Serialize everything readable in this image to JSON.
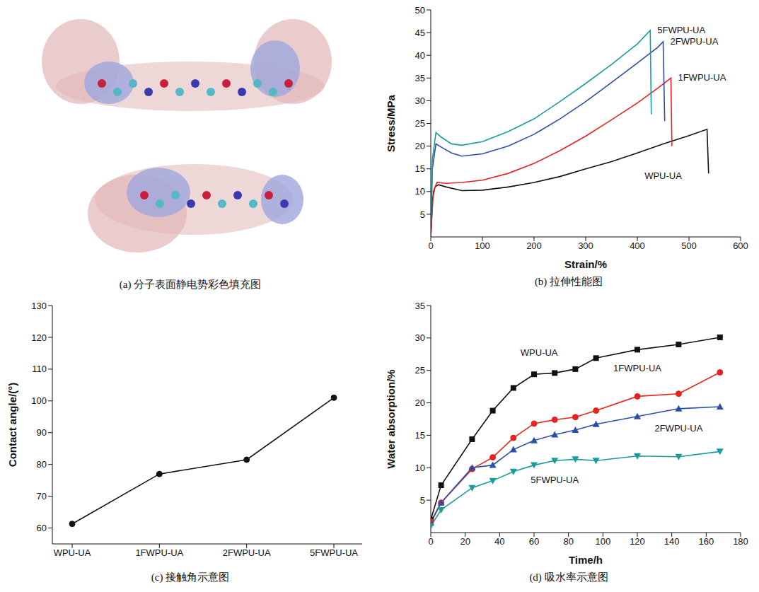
{
  "chart_data": [
    {
      "type": "image",
      "caption": "(a) 分子表面静电势彩色填充图"
    },
    {
      "type": "line",
      "caption": "(b) 拉伸性能图",
      "x_label": "Strain/%",
      "y_label": "Stress/MPa",
      "xlim": [
        0,
        600
      ],
      "xticks": [
        0,
        100,
        200,
        300,
        400,
        500,
        600
      ],
      "ylim": [
        0,
        50
      ],
      "yticks": [
        5,
        10,
        15,
        20,
        25,
        30,
        35,
        40,
        45,
        50
      ],
      "series": [
        {
          "name": "WPU-UA",
          "color": "#111111",
          "marker": "none",
          "line_style": "solid",
          "x": [
            0,
            3,
            8,
            15,
            30,
            60,
            100,
            150,
            200,
            250,
            300,
            350,
            400,
            450,
            500,
            535,
            538
          ],
          "values": [
            0,
            8,
            11,
            11.5,
            11,
            10.2,
            10.3,
            11,
            12,
            13.3,
            15,
            16.6,
            18.5,
            20.5,
            22.3,
            23.7,
            14
          ]
        },
        {
          "name": "1FWPU-UA",
          "color": "#e8231f",
          "marker": "none",
          "line_style": "solid",
          "x": [
            0,
            5,
            12,
            30,
            60,
            100,
            150,
            200,
            250,
            300,
            350,
            400,
            440,
            465,
            467
          ],
          "values": [
            0,
            10,
            12,
            11.8,
            12,
            12.5,
            14,
            16.2,
            19,
            22.2,
            25.8,
            29.5,
            32.8,
            35,
            20
          ]
        },
        {
          "name": "2FWPU-UA",
          "color": "#2b4fa6",
          "marker": "none",
          "line_style": "solid",
          "x": [
            0,
            3,
            10,
            20,
            40,
            60,
            100,
            150,
            200,
            250,
            300,
            350,
            400,
            440,
            450,
            453
          ],
          "values": [
            0,
            15,
            20.5,
            19.8,
            18.5,
            17.8,
            18.3,
            20,
            22.6,
            26,
            29.8,
            34,
            38.3,
            41.8,
            43,
            25.5
          ]
        },
        {
          "name": "5FWPU-UA",
          "color": "#1a9c9c",
          "marker": "none",
          "line_style": "solid",
          "x": [
            0,
            3,
            10,
            20,
            40,
            60,
            100,
            150,
            200,
            250,
            300,
            350,
            400,
            425,
            427
          ],
          "values": [
            0,
            17,
            23,
            22,
            20.5,
            20.2,
            21,
            23.2,
            26,
            29.8,
            33.8,
            38,
            42.5,
            45.5,
            27
          ]
        }
      ]
    },
    {
      "type": "line",
      "caption": "(c) 接触角示意图",
      "y_label": "Contact angle/(°)",
      "categories": [
        "WPU-UA",
        "1FWPU-UA",
        "2FWPU-UA",
        "5FWPU-UA"
      ],
      "ylim": [
        55,
        130
      ],
      "yticks": [
        60,
        70,
        80,
        90,
        100,
        110,
        120,
        130
      ],
      "series": [
        {
          "color": "#111111",
          "marker": "circle",
          "line_style": "solid",
          "values": [
            61.3,
            77,
            81.5,
            101
          ]
        }
      ]
    },
    {
      "type": "line",
      "caption": "(d) 吸水率示意图",
      "x_label": "Time/h",
      "y_label": "Water absorption/%",
      "x": [
        0,
        6,
        24,
        36,
        48,
        60,
        72,
        84,
        96,
        120,
        144,
        168
      ],
      "xlim": [
        0,
        180
      ],
      "xticks": [
        0,
        20,
        40,
        60,
        80,
        100,
        120,
        140,
        160,
        180
      ],
      "ylim": [
        0,
        35
      ],
      "yticks": [
        5,
        10,
        15,
        20,
        25,
        30,
        35
      ],
      "series": [
        {
          "name": "WPU-UA",
          "color": "#111111",
          "marker": "square",
          "line_style": "solid",
          "values": [
            2,
            7.3,
            14.4,
            18.8,
            22.3,
            24.4,
            24.6,
            25.2,
            26.9,
            28.2,
            29,
            30.1
          ]
        },
        {
          "name": "1FWPU-UA",
          "color": "#e8231f",
          "marker": "circle",
          "line_style": "solid",
          "values": [
            1.7,
            4.6,
            9.8,
            11.6,
            14.6,
            16.8,
            17.4,
            17.8,
            18.8,
            21,
            21.4,
            24.7
          ]
        },
        {
          "name": "2FWPU-UA",
          "color": "#2b4fa6",
          "marker": "triangle",
          "line_style": "solid",
          "values": [
            1.5,
            4.6,
            10,
            10.4,
            12.8,
            14.2,
            15.1,
            15.8,
            16.7,
            17.9,
            19.1,
            19.4
          ]
        },
        {
          "name": "5FWPU-UA",
          "color": "#1a9c9c",
          "marker": "triangle-down",
          "line_style": "solid",
          "values": [
            1,
            3.5,
            6.9,
            8,
            9.4,
            10.4,
            11.1,
            11.3,
            11.1,
            11.8,
            11.7,
            12.5
          ]
        }
      ]
    }
  ]
}
